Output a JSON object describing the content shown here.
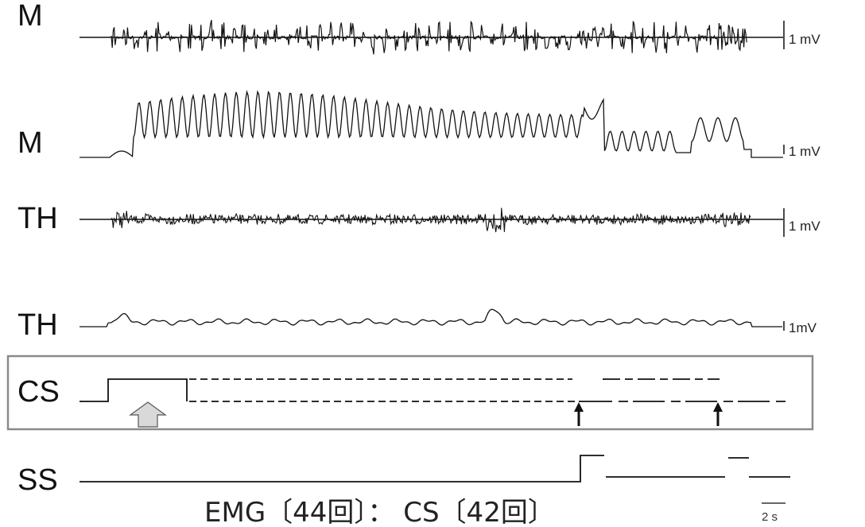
{
  "chart_data": {
    "type": "line",
    "title": "",
    "traces": [
      {
        "name": "M",
        "kind": "raw EMG",
        "scale_label": "1 mV"
      },
      {
        "name": "M",
        "kind": "integrated EMG",
        "scale_label": "1 mV"
      },
      {
        "name": "TH",
        "kind": "raw EMG",
        "scale_label": "1 mV"
      },
      {
        "name": "TH",
        "kind": "integrated EMG",
        "scale_label": "1mV"
      },
      {
        "name": "CS",
        "kind": "event"
      },
      {
        "name": "SS",
        "kind": "event"
      }
    ],
    "time_scale_label": "2 s",
    "caption": "EMG〔44回〕： CS〔42回〕",
    "emg_burst_count": 44,
    "cs_count": 42,
    "colors": {
      "trace": "#111111",
      "frame": "#8a8a8a",
      "stimulus_arrow_fill": "#d9d9d9"
    }
  }
}
